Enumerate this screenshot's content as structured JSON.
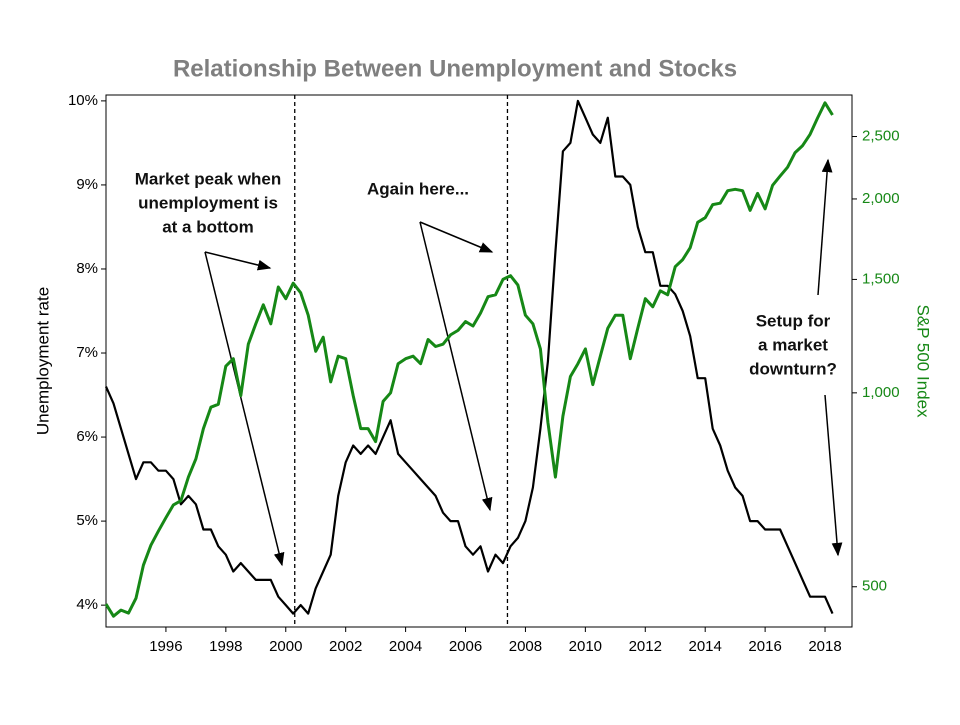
{
  "chart_data": {
    "type": "line",
    "title": "Relationship Between Unemployment and Stocks",
    "y_label": "Unemployment rate",
    "y2_label": "S&P 500 Index",
    "x": [
      1994.0,
      1994.25,
      1994.5,
      1994.75,
      1995.0,
      1995.25,
      1995.5,
      1995.75,
      1996.0,
      1996.25,
      1996.5,
      1996.75,
      1997.0,
      1997.25,
      1997.5,
      1997.75,
      1998.0,
      1998.25,
      1998.5,
      1998.75,
      1999.0,
      1999.25,
      1999.5,
      1999.75,
      2000.0,
      2000.25,
      2000.5,
      2000.75,
      2001.0,
      2001.25,
      2001.5,
      2001.75,
      2002.0,
      2002.25,
      2002.5,
      2002.75,
      2003.0,
      2003.25,
      2003.5,
      2003.75,
      2004.0,
      2004.25,
      2004.5,
      2004.75,
      2005.0,
      2005.25,
      2005.5,
      2005.75,
      2006.0,
      2006.25,
      2006.5,
      2006.75,
      2007.0,
      2007.25,
      2007.5,
      2007.75,
      2008.0,
      2008.25,
      2008.5,
      2008.75,
      2009.0,
      2009.25,
      2009.5,
      2009.75,
      2010.0,
      2010.25,
      2010.5,
      2010.75,
      2011.0,
      2011.25,
      2011.5,
      2011.75,
      2012.0,
      2012.25,
      2012.5,
      2012.75,
      2013.0,
      2013.25,
      2013.5,
      2013.75,
      2014.0,
      2014.25,
      2014.5,
      2014.75,
      2015.0,
      2015.25,
      2015.5,
      2015.75,
      2016.0,
      2016.25,
      2016.5,
      2016.75,
      2017.0,
      2017.25,
      2017.5,
      2017.75,
      2018.0,
      2018.25
    ],
    "series": [
      {
        "name": "Unemployment rate",
        "color": "#000000",
        "axis": "y",
        "values": [
          6.6,
          6.4,
          6.1,
          5.8,
          5.5,
          5.7,
          5.7,
          5.6,
          5.6,
          5.5,
          5.2,
          5.3,
          5.2,
          4.9,
          4.9,
          4.7,
          4.6,
          4.4,
          4.5,
          4.4,
          4.3,
          4.3,
          4.3,
          4.1,
          4.0,
          3.9,
          4.0,
          3.9,
          4.2,
          4.4,
          4.6,
          5.3,
          5.7,
          5.9,
          5.8,
          5.9,
          5.8,
          6.0,
          6.2,
          5.8,
          5.7,
          5.6,
          5.5,
          5.4,
          5.3,
          5.1,
          5.0,
          5.0,
          4.7,
          4.6,
          4.7,
          4.4,
          4.6,
          4.5,
          4.7,
          4.8,
          5.0,
          5.4,
          6.1,
          6.9,
          8.2,
          9.4,
          9.5,
          10.0,
          9.8,
          9.6,
          9.5,
          9.8,
          9.1,
          9.1,
          9.0,
          8.5,
          8.2,
          8.2,
          7.8,
          7.8,
          7.7,
          7.5,
          7.2,
          6.7,
          6.7,
          6.1,
          5.9,
          5.6,
          5.4,
          5.3,
          5.0,
          5.0,
          4.9,
          4.9,
          4.9,
          4.7,
          4.5,
          4.3,
          4.1,
          4.1,
          4.1,
          3.9
        ]
      },
      {
        "name": "S&P 500 Index",
        "color": "#168816",
        "axis": "y2",
        "values": [
          470,
          450,
          460,
          455,
          480,
          540,
          580,
          610,
          640,
          670,
          680,
          740,
          790,
          880,
          950,
          960,
          1100,
          1130,
          990,
          1190,
          1280,
          1370,
          1280,
          1460,
          1400,
          1480,
          1430,
          1320,
          1160,
          1220,
          1040,
          1140,
          1130,
          990,
          880,
          880,
          840,
          970,
          1000,
          1110,
          1130,
          1140,
          1110,
          1210,
          1180,
          1190,
          1230,
          1250,
          1290,
          1270,
          1330,
          1410,
          1420,
          1500,
          1520,
          1470,
          1320,
          1280,
          1170,
          900,
          740,
          920,
          1060,
          1110,
          1170,
          1030,
          1140,
          1260,
          1320,
          1320,
          1130,
          1260,
          1400,
          1360,
          1440,
          1420,
          1570,
          1610,
          1680,
          1840,
          1870,
          1960,
          1970,
          2060,
          2070,
          2060,
          1920,
          2040,
          1930,
          2100,
          2170,
          2240,
          2360,
          2420,
          2520,
          2670,
          2820,
          2700
        ]
      }
    ],
    "xlim": [
      1994.0,
      2018.9
    ],
    "xticks": [
      1996,
      1998,
      2000,
      2002,
      2004,
      2006,
      2008,
      2010,
      2012,
      2014,
      2016,
      2018
    ],
    "ylim": [
      3.74,
      10.07
    ],
    "yticks": [
      {
        "value": 4,
        "label": "4%"
      },
      {
        "value": 5,
        "label": "5%"
      },
      {
        "value": 6,
        "label": "6%"
      },
      {
        "value": 7,
        "label": "7%"
      },
      {
        "value": 8,
        "label": "8%"
      },
      {
        "value": 9,
        "label": "9%"
      },
      {
        "value": 10,
        "label": "10%"
      }
    ],
    "y2lim": [
      433,
      2900
    ],
    "y2_scale": "log",
    "y2ticks": [
      500,
      {
        "value": 1000,
        "label": "1,000"
      },
      {
        "value": 1500,
        "label": "1,500"
      },
      {
        "value": 2000,
        "label": "2,000"
      },
      {
        "value": 2500,
        "label": "2,500"
      }
    ],
    "reference_lines": [
      2000.3,
      2007.4
    ],
    "annotations": [
      {
        "lines": [
          "Market peak when",
          "unemployment is",
          "at a bottom"
        ]
      },
      {
        "lines": [
          "Again here..."
        ]
      },
      {
        "lines": [
          "Setup for",
          "a market",
          "downturn?"
        ]
      }
    ]
  }
}
